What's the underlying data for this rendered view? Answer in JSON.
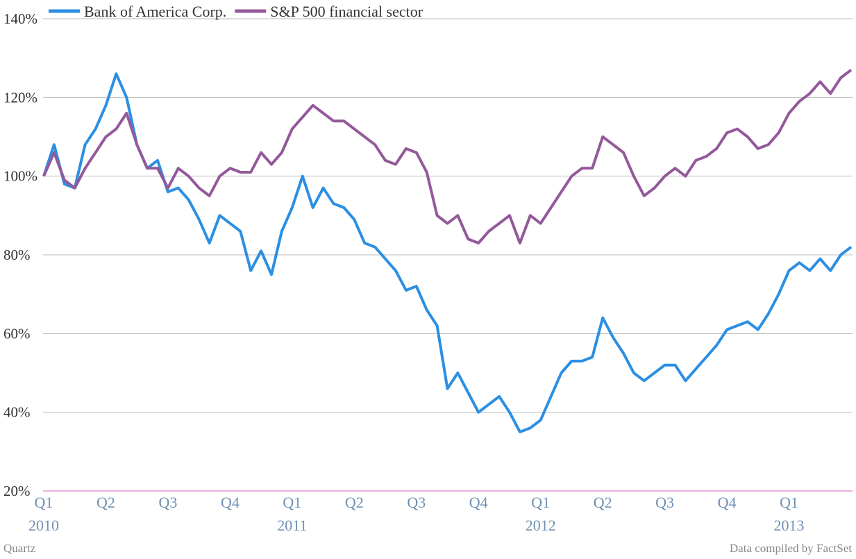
{
  "chart_data": {
    "type": "line",
    "categories": [
      "Q1",
      null,
      null,
      null,
      null,
      null,
      "Q2",
      null,
      null,
      null,
      null,
      null,
      "Q3",
      null,
      null,
      null,
      null,
      null,
      "Q4",
      null,
      null,
      null,
      null,
      null,
      "Q1",
      null,
      null,
      null,
      null,
      null,
      "Q2",
      null,
      null,
      null,
      null,
      null,
      "Q3",
      null,
      null,
      null,
      null,
      null,
      "Q4",
      null,
      null,
      null,
      null,
      null,
      "Q1",
      null,
      null,
      null,
      null,
      null,
      "Q2",
      null,
      null,
      null,
      null,
      null,
      "Q3",
      null,
      null,
      null,
      null,
      null,
      "Q4",
      null,
      null,
      null,
      null,
      null,
      "Q1",
      null,
      null,
      null,
      null,
      null,
      null
    ],
    "years": [
      "2010",
      null,
      null,
      null,
      null,
      null,
      null,
      null,
      null,
      null,
      null,
      null,
      null,
      null,
      null,
      null,
      null,
      null,
      null,
      null,
      null,
      null,
      null,
      null,
      "2011",
      null,
      null,
      null,
      null,
      null,
      null,
      null,
      null,
      null,
      null,
      null,
      null,
      null,
      null,
      null,
      null,
      null,
      null,
      null,
      null,
      null,
      null,
      null,
      "2012",
      null,
      null,
      null,
      null,
      null,
      null,
      null,
      null,
      null,
      null,
      null,
      null,
      null,
      null,
      null,
      null,
      null,
      null,
      null,
      null,
      null,
      null,
      null,
      "2013",
      null,
      null,
      null,
      null,
      null,
      null
    ],
    "series": [
      {
        "name": "Bank of America Corp.",
        "color": "#2b8fe3",
        "values": [
          100,
          108,
          98,
          97,
          108,
          112,
          118,
          126,
          120,
          108,
          102,
          104,
          96,
          97,
          94,
          89,
          83,
          90,
          88,
          86,
          76,
          81,
          75,
          86,
          92,
          100,
          92,
          97,
          93,
          92,
          89,
          83,
          82,
          79,
          76,
          71,
          72,
          66,
          62,
          46,
          50,
          45,
          40,
          42,
          44,
          40,
          35,
          36,
          38,
          44,
          50,
          53,
          53,
          54,
          64,
          59,
          55,
          50,
          48,
          50,
          52,
          52,
          48,
          51,
          54,
          57,
          61,
          62,
          63,
          61,
          65,
          70,
          76,
          78,
          76,
          79,
          76,
          80,
          82
        ]
      },
      {
        "name": "S&P 500 financial sector",
        "color": "#93599a",
        "values": [
          100,
          106,
          99,
          97,
          102,
          106,
          110,
          112,
          116,
          108,
          102,
          102,
          97,
          102,
          100,
          97,
          95,
          100,
          102,
          101,
          101,
          106,
          103,
          106,
          112,
          115,
          118,
          116,
          114,
          114,
          112,
          110,
          108,
          104,
          103,
          107,
          106,
          101,
          90,
          88,
          90,
          84,
          83,
          86,
          88,
          90,
          83,
          90,
          88,
          92,
          96,
          100,
          102,
          102,
          110,
          108,
          106,
          100,
          95,
          97,
          100,
          102,
          100,
          104,
          105,
          107,
          111,
          112,
          110,
          107,
          108,
          111,
          116,
          119,
          121,
          124,
          121,
          125,
          127
        ]
      }
    ],
    "ylim": [
      20,
      140
    ],
    "yticks": [
      {
        "value": 20,
        "label": "20%"
      },
      {
        "value": 40,
        "label": "40%"
      },
      {
        "value": 60,
        "label": "60%"
      },
      {
        "value": 80,
        "label": "80%"
      },
      {
        "value": 100,
        "label": "100%"
      },
      {
        "value": 120,
        "label": "120%"
      },
      {
        "value": 140,
        "label": "140%"
      }
    ],
    "grid": true,
    "source_left": "Quartz",
    "source_right": "Data compiled by FactSet"
  }
}
